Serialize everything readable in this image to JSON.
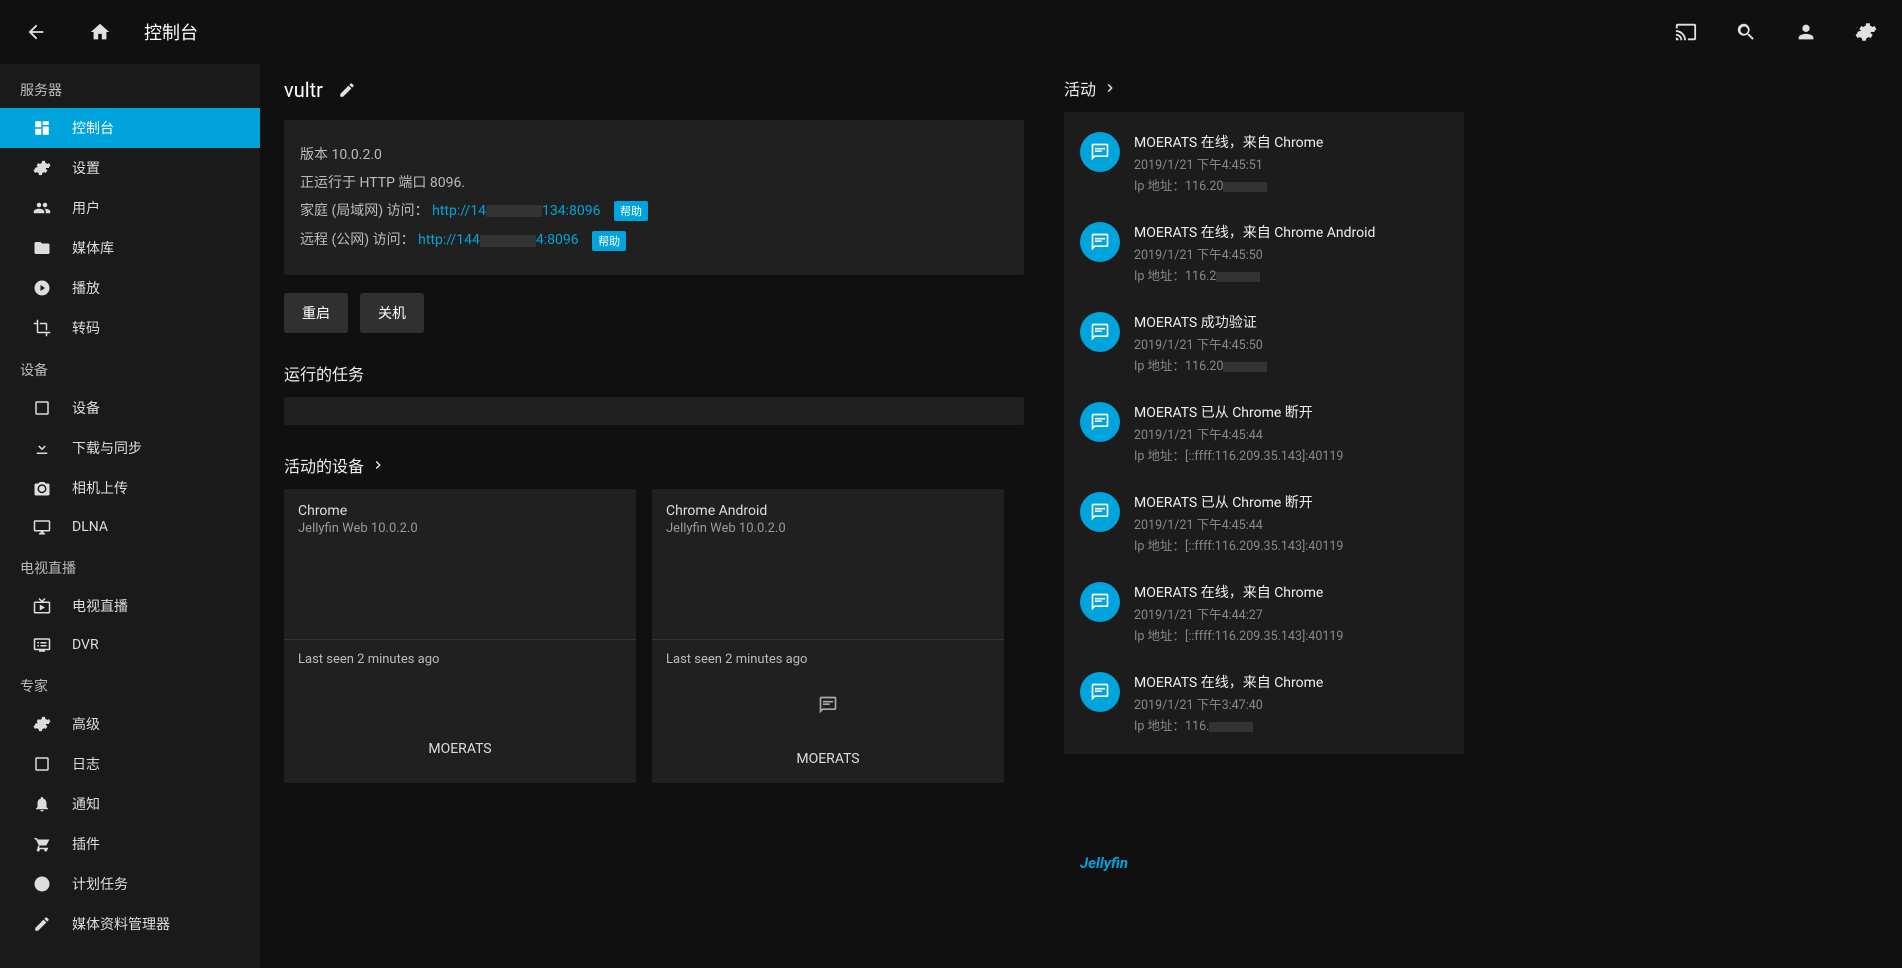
{
  "header": {
    "title": "控制台"
  },
  "sidebar": {
    "groups": [
      {
        "header": "服务器",
        "items": [
          {
            "label": "控制台",
            "icon": "dashboard"
          },
          {
            "label": "设置",
            "icon": "gear"
          },
          {
            "label": "用户",
            "icon": "people"
          },
          {
            "label": "媒体库",
            "icon": "folder"
          },
          {
            "label": "播放",
            "icon": "play-circle"
          },
          {
            "label": "转码",
            "icon": "crop"
          }
        ]
      },
      {
        "header": "设备",
        "items": [
          {
            "label": "设备",
            "icon": "tablet"
          },
          {
            "label": "下载与同步",
            "icon": "download"
          },
          {
            "label": "相机上传",
            "icon": "camera"
          },
          {
            "label": "DLNA",
            "icon": "monitor"
          }
        ]
      },
      {
        "header": "电视直播",
        "items": [
          {
            "label": "电视直播",
            "icon": "live-tv"
          },
          {
            "label": "DVR",
            "icon": "dvr"
          }
        ]
      },
      {
        "header": "专家",
        "items": [
          {
            "label": "高级",
            "icon": "gear"
          },
          {
            "label": "日志",
            "icon": "tablet"
          },
          {
            "label": "通知",
            "icon": "bell"
          },
          {
            "label": "插件",
            "icon": "cart"
          },
          {
            "label": "计划任务",
            "icon": "schedule"
          },
          {
            "label": "媒体资料管理器",
            "icon": "edit"
          }
        ]
      }
    ]
  },
  "server": {
    "name": "vultr",
    "version_label": "版本 10.0.2.0",
    "running_on": "正运行于 HTTP 端口 8096.",
    "lan_prefix": "家庭 (局域网) 访问：",
    "lan_link": "http://14",
    "lan_suffix": "134:8096",
    "wan_prefix": "远程 (公网) 访问：",
    "wan_link": "http://144",
    "wan_suffix": "4:8096",
    "help_badge": "帮助",
    "restart_label": "重启",
    "shutdown_label": "关机"
  },
  "sections": {
    "running_tasks": "运行的任务",
    "active_devices": "活动的设备",
    "activity": "活动"
  },
  "devices": [
    {
      "browser": "Chrome",
      "version": "Jellyfin Web 10.0.2.0",
      "lastseen": "Last seen 2 minutes ago",
      "user": "MOERATS",
      "show_msg": false
    },
    {
      "browser": "Chrome Android",
      "version": "Jellyfin Web 10.0.2.0",
      "lastseen": "Last seen 2 minutes ago",
      "user": "MOERATS",
      "show_msg": true
    }
  ],
  "activity": [
    {
      "title": "MOERATS 在线，来自 Chrome",
      "time": "2019/1/21 下午4:45:51",
      "ip": "Ip 地址：116.20",
      "masked": true
    },
    {
      "title": "MOERATS 在线，来自 Chrome Android",
      "time": "2019/1/21 下午4:45:50",
      "ip": "Ip 地址：116.2",
      "masked": true
    },
    {
      "title": "MOERATS 成功验证",
      "time": "2019/1/21 下午4:45:50",
      "ip": "Ip 地址：116.20",
      "masked": true
    },
    {
      "title": "MOERATS 已从 Chrome 断开",
      "time": "2019/1/21 下午4:45:44",
      "ip": "Ip 地址：[::ffff:116.209.35.143]:40119",
      "masked": false
    },
    {
      "title": "MOERATS 已从 Chrome 断开",
      "time": "2019/1/21 下午4:45:44",
      "ip": "Ip 地址：[::ffff:116.209.35.143]:40119",
      "masked": false
    },
    {
      "title": "MOERATS 在线，来自 Chrome",
      "time": "2019/1/21 下午4:44:27",
      "ip": "Ip 地址：[::ffff:116.209.35.143]:40119",
      "masked": false
    },
    {
      "title": "MOERATS 在线，来自 Chrome",
      "time": "2019/1/21 下午3:47:40",
      "ip": "Ip 地址：116.",
      "masked": true
    }
  ],
  "brand": "Jellyfin",
  "colors": {
    "accent": "#00a4dc",
    "bg": "#101010",
    "panel": "#202020"
  }
}
